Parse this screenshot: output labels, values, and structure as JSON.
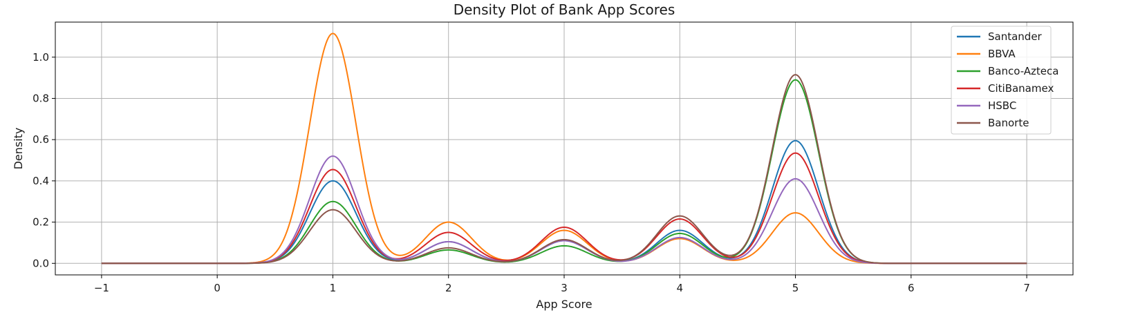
{
  "chart_data": {
    "type": "line",
    "title": "Density Plot of Bank App Scores",
    "xlabel": "App Score",
    "ylabel": "Density",
    "xlim": [
      -1.4,
      7.4
    ],
    "ylim": [
      -0.056,
      1.17
    ],
    "x_ticks": [
      -1,
      0,
      1,
      2,
      3,
      4,
      5,
      6,
      7
    ],
    "x_tick_labels": [
      "−1",
      "0",
      "1",
      "2",
      "3",
      "4",
      "5",
      "6",
      "7"
    ],
    "y_ticks": [
      0.0,
      0.2,
      0.4,
      0.6,
      0.8,
      1.0
    ],
    "y_tick_labels": [
      "0.0",
      "0.2",
      "0.4",
      "0.6",
      "0.8",
      "1.0"
    ],
    "grid": true,
    "legend_position": "top-right",
    "x_range": [
      -1,
      7
    ],
    "peak_locations": [
      1,
      2,
      3,
      4,
      5
    ],
    "series": [
      {
        "name": "Santander",
        "color": "#1f77b4",
        "peaks": [
          0.4,
          0.105,
          0.11,
          0.16,
          0.595
        ]
      },
      {
        "name": "BBVA",
        "color": "#ff7f0e",
        "peaks": [
          1.115,
          0.2,
          0.16,
          0.12,
          0.245
        ]
      },
      {
        "name": "Banco-Azteca",
        "color": "#2ca02c",
        "peaks": [
          0.3,
          0.065,
          0.085,
          0.145,
          0.89
        ]
      },
      {
        "name": "CitiBanamex",
        "color": "#d62728",
        "peaks": [
          0.455,
          0.15,
          0.175,
          0.215,
          0.535
        ]
      },
      {
        "name": "HSBC",
        "color": "#9467bd",
        "peaks": [
          0.52,
          0.105,
          0.11,
          0.125,
          0.41
        ]
      },
      {
        "name": "Banorte",
        "color": "#8c564b",
        "peaks": [
          0.26,
          0.075,
          0.115,
          0.23,
          0.915
        ]
      }
    ]
  }
}
